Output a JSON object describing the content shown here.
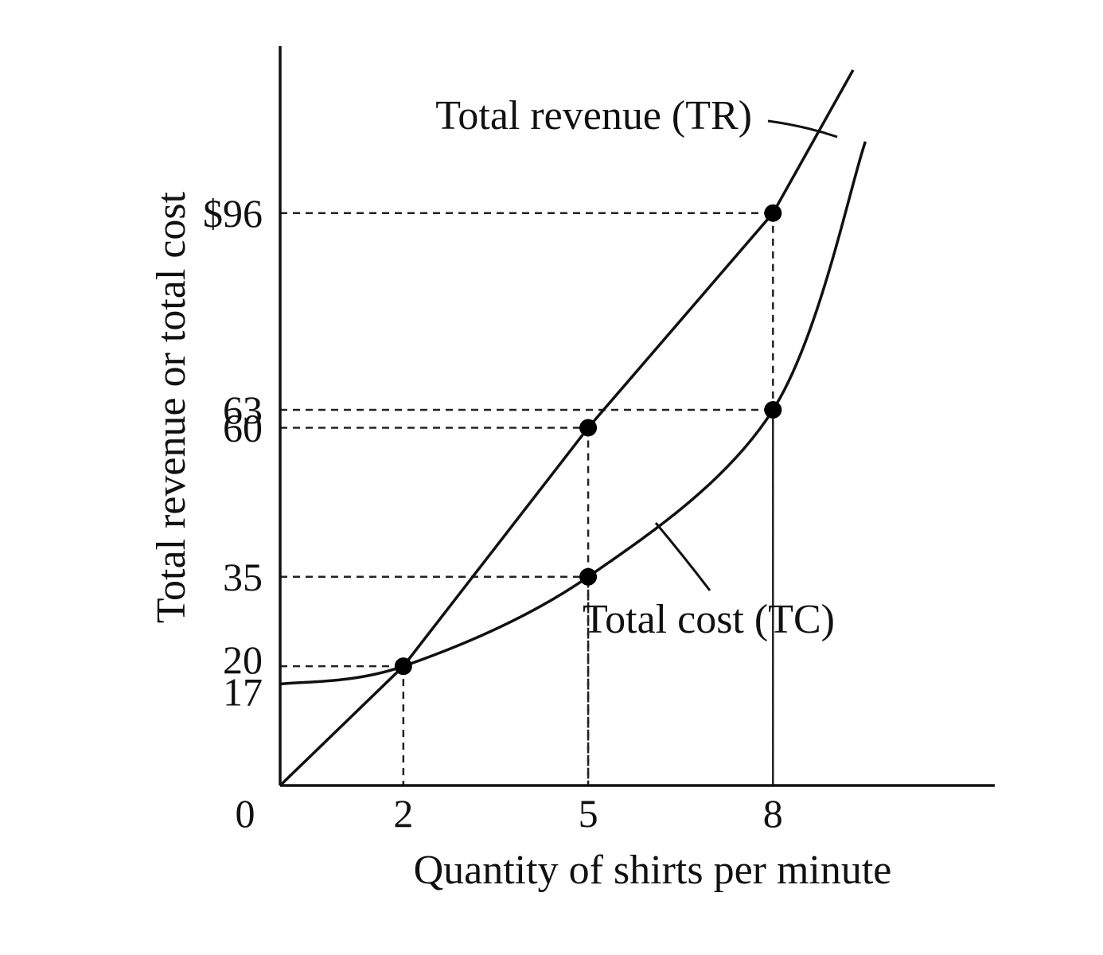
{
  "chart_data": {
    "type": "line",
    "title": "",
    "xlabel": "Quantity of shirts per minute",
    "ylabel": "Total revenue or total cost",
    "origin_label": "0",
    "x_ticks": [
      {
        "value": 2,
        "label": "2"
      },
      {
        "value": 5,
        "label": "5"
      },
      {
        "value": 8,
        "label": "8"
      }
    ],
    "y_ticks": [
      {
        "value": 17,
        "label": "17"
      },
      {
        "value": 20,
        "label": "20"
      },
      {
        "value": 35,
        "label": "35"
      },
      {
        "value": 60,
        "label": "60"
      },
      {
        "value": 63,
        "label": "63"
      },
      {
        "value": 96,
        "label": "$96"
      }
    ],
    "xlim": [
      0,
      11.6
    ],
    "ylim": [
      0,
      124
    ],
    "grid": false,
    "series": [
      {
        "name": "Total revenue (TR)",
        "kind": "line",
        "x": [
          0,
          2,
          5,
          8,
          9.3
        ],
        "y": [
          0,
          20,
          60,
          96,
          120
        ]
      },
      {
        "name": "Total cost (TC)",
        "kind": "curve",
        "x": [
          0,
          2,
          5,
          8,
          9.5
        ],
        "y": [
          17,
          20,
          35,
          63,
          108
        ]
      }
    ],
    "highlighted_points": [
      {
        "x": 2,
        "y": 20
      },
      {
        "x": 5,
        "y": 60
      },
      {
        "x": 5,
        "y": 35
      },
      {
        "x": 8,
        "y": 96
      },
      {
        "x": 8,
        "y": 63
      }
    ]
  }
}
